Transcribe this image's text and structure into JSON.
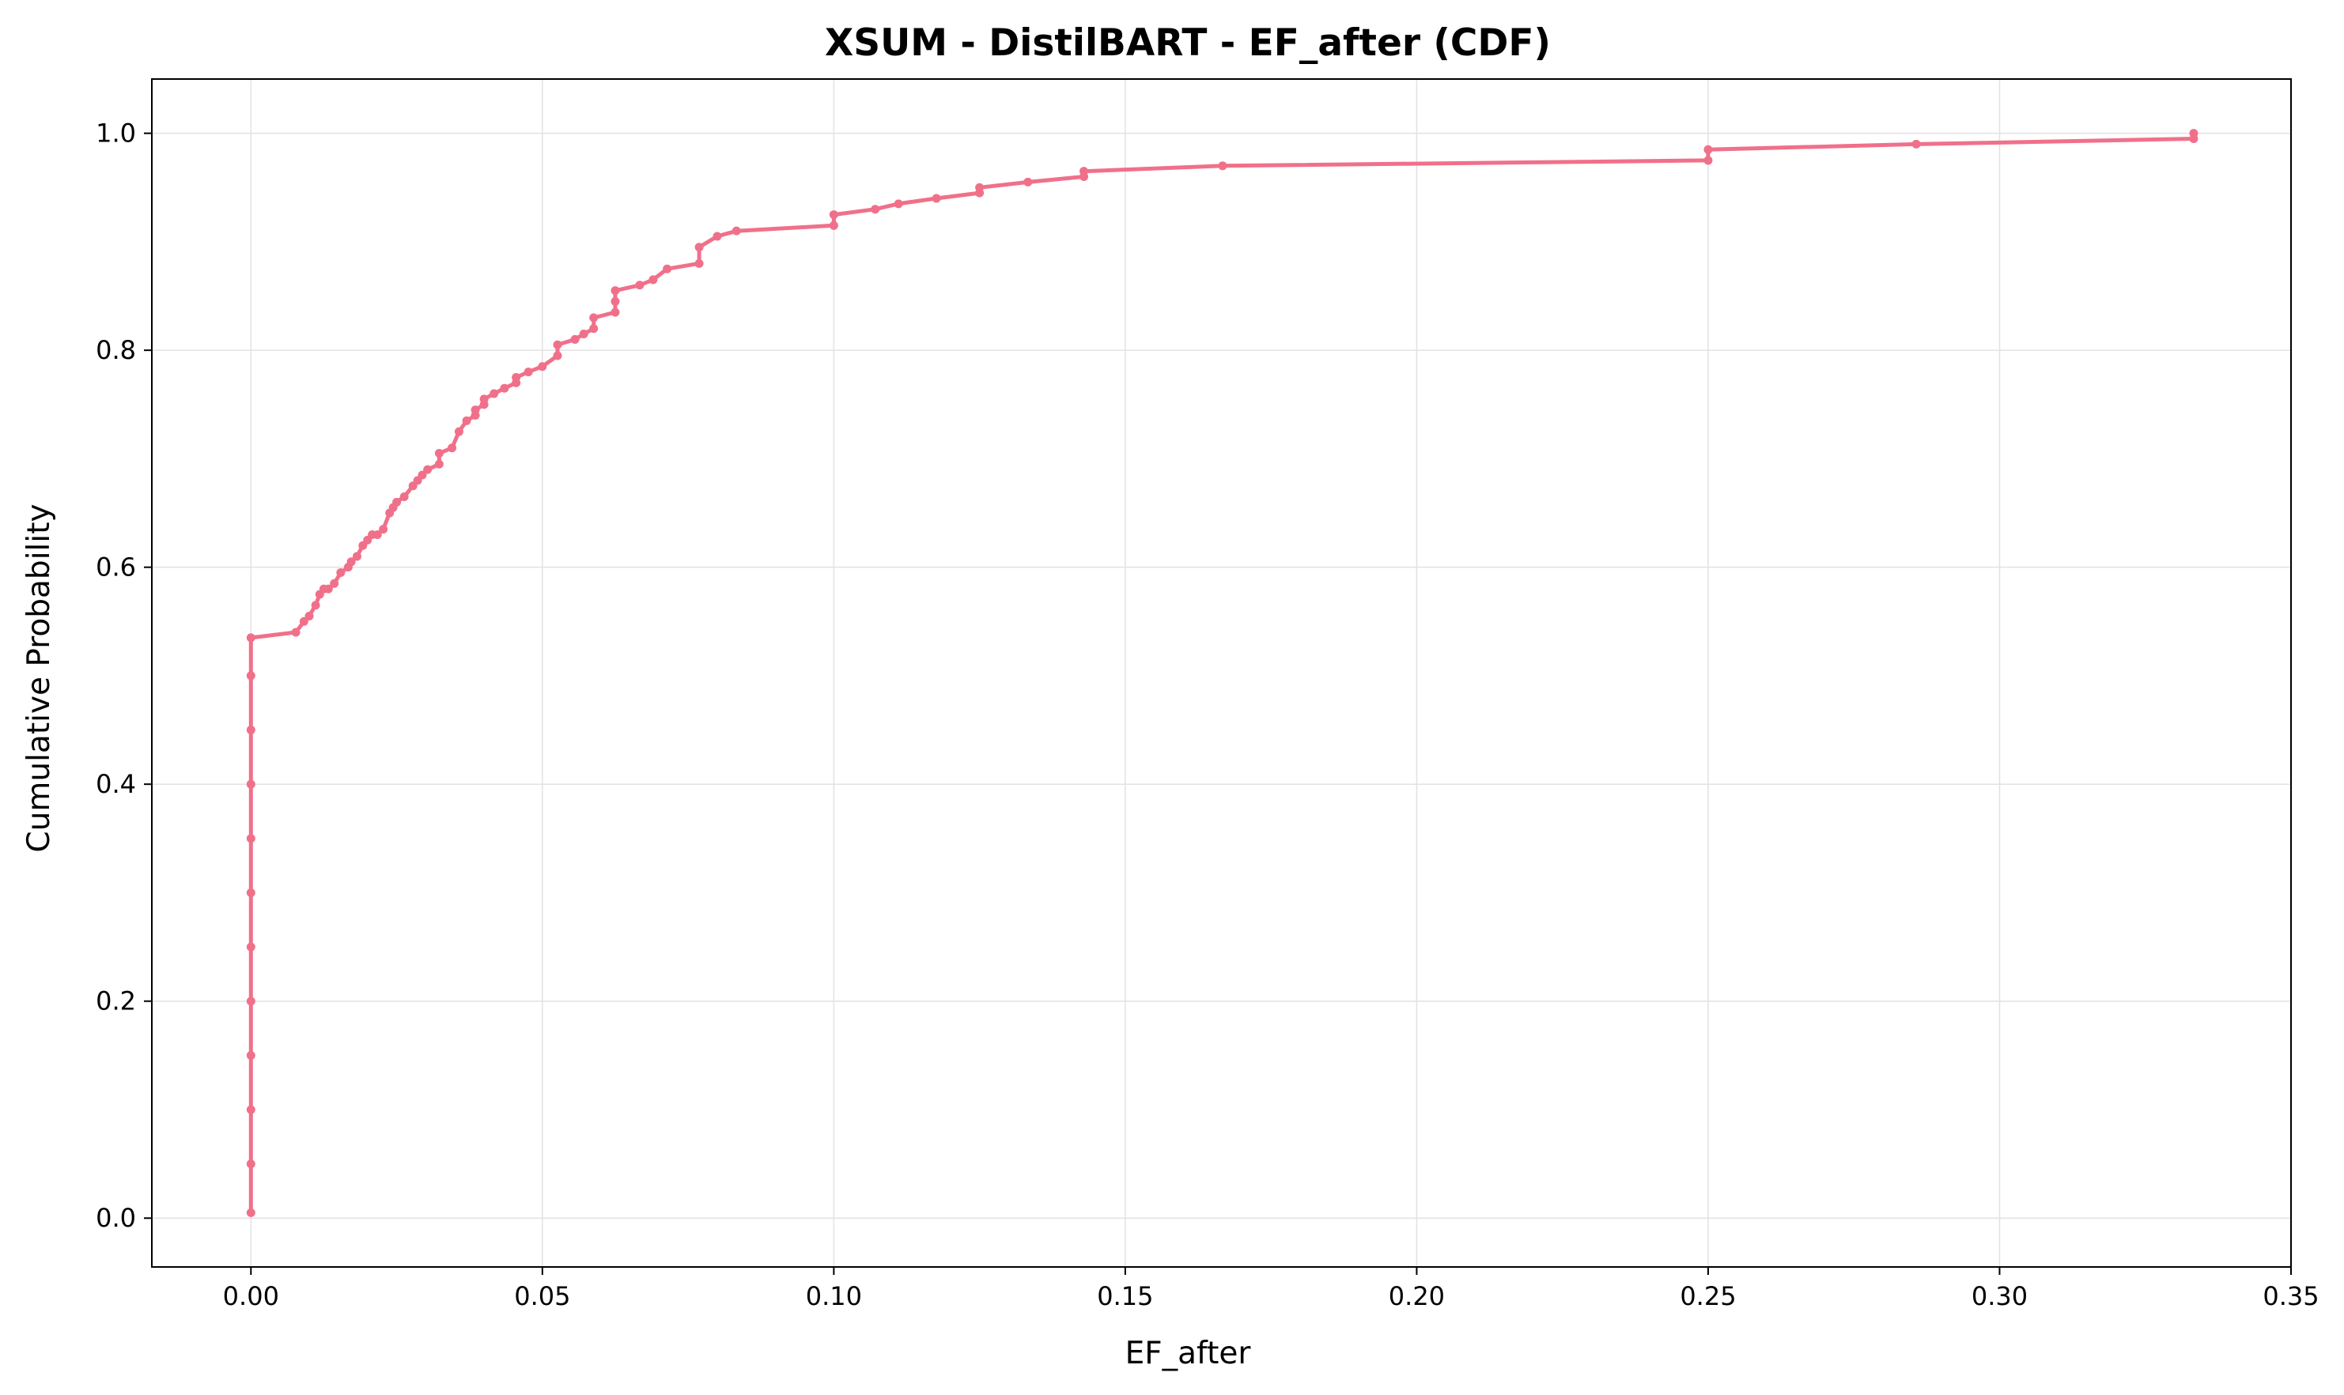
{
  "colors": {
    "series": "#f0708a",
    "grid": "#e2e2e2",
    "axes": "#000000",
    "background": "#ffffff"
  },
  "chart_data": {
    "type": "line",
    "title": "XSUM - DistilBART - EF_after (CDF)",
    "xlabel": "EF_after",
    "ylabel": "Cumulative Probability",
    "xlim": [
      -0.017,
      0.35
    ],
    "ylim": [
      -0.045,
      1.05
    ],
    "grid": true,
    "legend": "none",
    "x_ticks": [
      0.0,
      0.05,
      0.1,
      0.15,
      0.2,
      0.25,
      0.3,
      0.35
    ],
    "x_tick_labels": [
      "0.00",
      "0.05",
      "0.10",
      "0.15",
      "0.20",
      "0.25",
      "0.30",
      "0.35"
    ],
    "y_ticks": [
      0.0,
      0.2,
      0.4,
      0.6,
      0.8,
      1.0
    ],
    "y_tick_labels": [
      "0.0",
      "0.2",
      "0.4",
      "0.6",
      "0.8",
      "1.0"
    ],
    "series": [
      {
        "marker": "circle",
        "x": [
          0.0,
          0.0,
          0.0,
          0.0,
          0.0,
          0.0,
          0.0,
          0.0,
          0.0,
          0.0,
          0.0,
          0.0,
          0.0077,
          0.0091,
          0.01,
          0.0111,
          0.0118,
          0.0125,
          0.0133,
          0.0143,
          0.0154,
          0.0167,
          0.0172,
          0.0182,
          0.0192,
          0.02,
          0.0208,
          0.0217,
          0.0227,
          0.0238,
          0.0244,
          0.025,
          0.0263,
          0.0278,
          0.0286,
          0.0294,
          0.0303,
          0.0323,
          0.0323,
          0.0345,
          0.0357,
          0.037,
          0.0385,
          0.0385,
          0.04,
          0.04,
          0.0417,
          0.0435,
          0.0455,
          0.0455,
          0.0476,
          0.05,
          0.0526,
          0.0526,
          0.0556,
          0.0571,
          0.0588,
          0.0588,
          0.0625,
          0.0625,
          0.0625,
          0.0667,
          0.069,
          0.0714,
          0.0769,
          0.0769,
          0.08,
          0.0833,
          0.1,
          0.1,
          0.1071,
          0.1111,
          0.1176,
          0.125,
          0.125,
          0.1333,
          0.1429,
          0.1429,
          0.1667,
          0.25,
          0.25,
          0.2857,
          0.3333,
          0.3333
        ],
        "y": [
          0.005,
          0.05,
          0.1,
          0.15,
          0.2,
          0.25,
          0.3,
          0.35,
          0.4,
          0.45,
          0.5,
          0.535,
          0.54,
          0.55,
          0.555,
          0.565,
          0.575,
          0.58,
          0.58,
          0.585,
          0.595,
          0.6,
          0.605,
          0.61,
          0.62,
          0.625,
          0.63,
          0.63,
          0.635,
          0.65,
          0.655,
          0.66,
          0.665,
          0.675,
          0.68,
          0.685,
          0.69,
          0.695,
          0.705,
          0.71,
          0.725,
          0.735,
          0.74,
          0.745,
          0.75,
          0.755,
          0.76,
          0.765,
          0.77,
          0.775,
          0.78,
          0.785,
          0.795,
          0.805,
          0.81,
          0.815,
          0.82,
          0.83,
          0.835,
          0.845,
          0.855,
          0.86,
          0.865,
          0.875,
          0.88,
          0.895,
          0.905,
          0.91,
          0.915,
          0.925,
          0.93,
          0.935,
          0.94,
          0.945,
          0.95,
          0.955,
          0.96,
          0.965,
          0.97,
          0.975,
          0.985,
          0.99,
          0.995,
          1.0
        ]
      }
    ]
  }
}
